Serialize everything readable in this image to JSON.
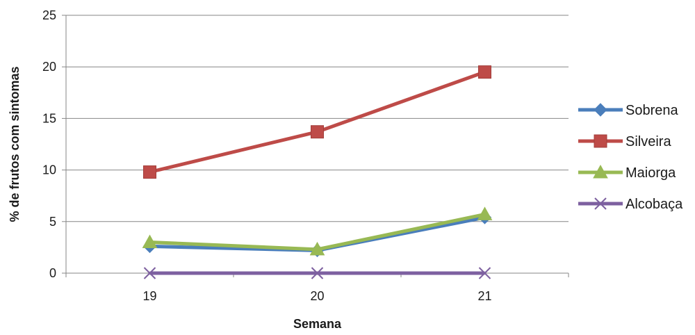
{
  "chart_data": {
    "type": "line",
    "title": "",
    "xlabel": "Semana",
    "ylabel": "% de frutos com sintomas",
    "categories": [
      "19",
      "20",
      "21"
    ],
    "ylim": [
      0,
      25
    ],
    "yticks": [
      "0",
      "5",
      "10",
      "15",
      "20",
      "25"
    ],
    "grid": true,
    "legend_position": "right",
    "series": [
      {
        "name": "Sobrena",
        "values": [
          2.6,
          2.2,
          5.4
        ],
        "color": "#4a7ebb",
        "marker": "diamond"
      },
      {
        "name": "Silveira",
        "values": [
          9.8,
          13.7,
          19.5
        ],
        "color": "#be4b48",
        "marker": "square"
      },
      {
        "name": "Maiorga",
        "values": [
          3.0,
          2.3,
          5.7
        ],
        "color": "#98b954",
        "marker": "triangle"
      },
      {
        "name": "Alcobaça",
        "values": [
          0,
          0,
          0
        ],
        "color": "#7d60a0",
        "marker": "x"
      }
    ]
  }
}
